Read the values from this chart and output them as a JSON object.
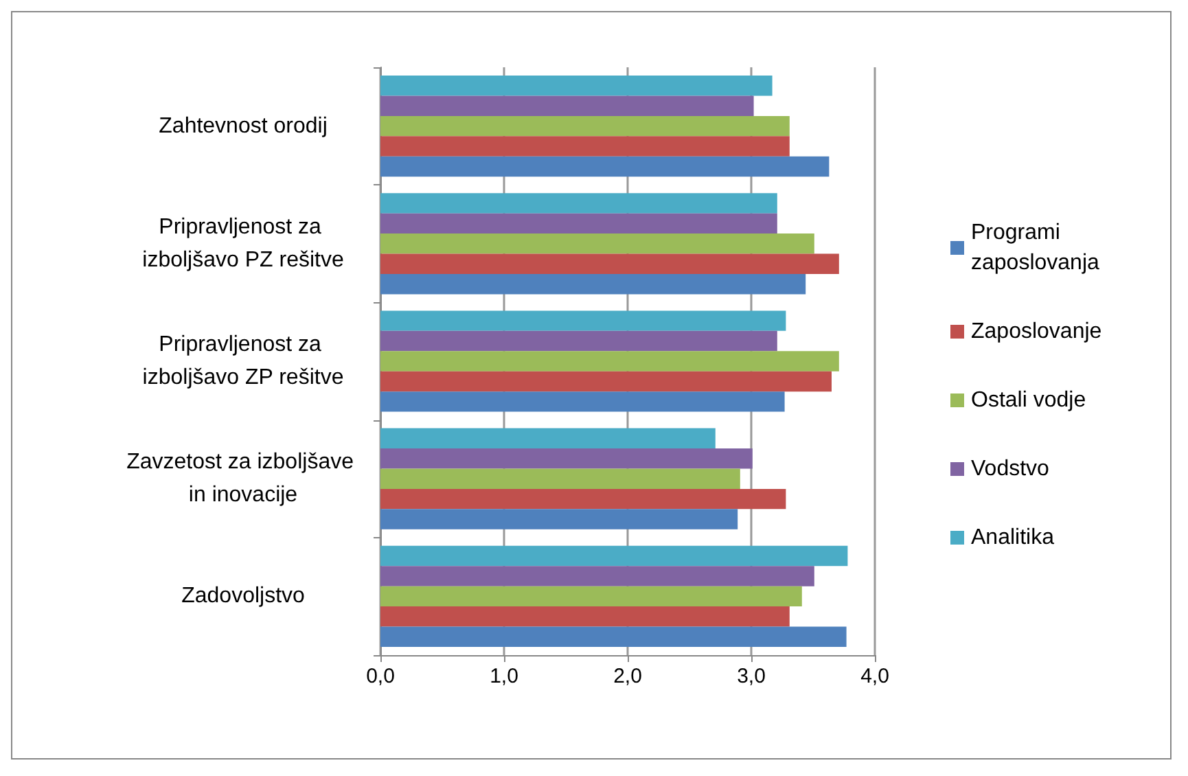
{
  "chart_data": {
    "type": "bar",
    "orientation": "horizontal",
    "categories": [
      "Zahtevnost orodij",
      "Pripravljenost za izboljšavo PZ rešitve",
      "Pripravljenost za izboljšavo ZP rešitve",
      "Zavzetost za izboljšave in inovacije",
      "Zadovoljstvo"
    ],
    "series": [
      {
        "name": "Analitika",
        "color": "#4bacc6",
        "values": [
          3.17,
          3.21,
          3.28,
          2.71,
          3.78
        ]
      },
      {
        "name": "Vodstvo",
        "color": "#8064a2",
        "values": [
          3.02,
          3.21,
          3.21,
          3.01,
          3.51
        ]
      },
      {
        "name": "Ostali vodje",
        "color": "#9bbb59",
        "values": [
          3.31,
          3.51,
          3.71,
          2.91,
          3.41
        ]
      },
      {
        "name": "Zaposlovanje",
        "color": "#c0504d",
        "values": [
          3.31,
          3.71,
          3.65,
          3.28,
          3.31
        ]
      },
      {
        "name": "Programi zaposlovanja",
        "color": "#4f81bd",
        "values": [
          3.63,
          3.44,
          3.27,
          2.89,
          3.77
        ]
      }
    ],
    "xlim": [
      0,
      4
    ],
    "xticks": [
      {
        "value": 0,
        "label": "0,0"
      },
      {
        "value": 1,
        "label": "1,0"
      },
      {
        "value": 2,
        "label": "2,0"
      },
      {
        "value": 3,
        "label": "3,0"
      },
      {
        "value": 4,
        "label": "4,0"
      }
    ],
    "grid": "x",
    "legend": "right"
  }
}
